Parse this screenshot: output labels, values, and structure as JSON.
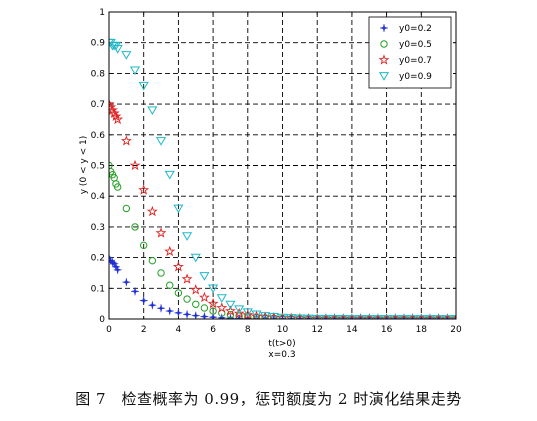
{
  "caption": "图 7　检查概率为 0.99，惩罚额度为 2 时演化结果走势",
  "chart_data": {
    "type": "scatter",
    "title": "",
    "xlabel": "t(t>0)",
    "xlabel2": "x=0.3",
    "ylabel": "y (0 < y < 1)",
    "xlim": [
      0,
      20
    ],
    "ylim": [
      0,
      1
    ],
    "xticks": [
      "0",
      "2",
      "4",
      "6",
      "8",
      "10",
      "12",
      "14",
      "16",
      "18",
      "20"
    ],
    "yticks": [
      "0",
      "0.1",
      "0.2",
      "0.3",
      "0.4",
      "0.5",
      "0.6",
      "0.7",
      "0.8",
      "0.9",
      "1"
    ],
    "grid": true,
    "legend_position": "top-right",
    "x": [
      0,
      0.1,
      0.2,
      0.3,
      0.4,
      0.5,
      1,
      1.5,
      2,
      2.5,
      3,
      3.5,
      4,
      4.5,
      5,
      5.5,
      6,
      6.5,
      7,
      7.5,
      8,
      8.5,
      9,
      9.5,
      10,
      10.5,
      11,
      11.5,
      12,
      12.5,
      13,
      13.5,
      14,
      14.5,
      15,
      15.5,
      16,
      16.5,
      17,
      17.5,
      18,
      18.5,
      19,
      19.5,
      20
    ],
    "series": [
      {
        "name": "y0=0.2",
        "marker": "star4",
        "color": "#1f2fd6",
        "values": [
          0.2,
          0.19,
          0.185,
          0.18,
          0.17,
          0.16,
          0.12,
          0.09,
          0.06,
          0.045,
          0.035,
          0.026,
          0.02,
          0.015,
          0.011,
          0.008,
          0.006,
          0.004,
          0.003,
          0.002,
          0.0015,
          0.001,
          0.0008,
          0.0006,
          0.0004,
          0.0003,
          0.0002,
          0.0002,
          0.0001,
          0.0001,
          0,
          0,
          0,
          0,
          0,
          0,
          0,
          0,
          0,
          0,
          0,
          0,
          0,
          0,
          0
        ]
      },
      {
        "name": "y0=0.5",
        "marker": "circle",
        "color": "#22a022",
        "values": [
          0.5,
          0.48,
          0.47,
          0.46,
          0.44,
          0.43,
          0.36,
          0.3,
          0.24,
          0.19,
          0.15,
          0.11,
          0.085,
          0.065,
          0.048,
          0.036,
          0.026,
          0.019,
          0.014,
          0.01,
          0.007,
          0.005,
          0.0036,
          0.0026,
          0.0018,
          0.0013,
          0.001,
          0.0007,
          0.0005,
          0.0003,
          0.0002,
          0.0002,
          0.0001,
          0.0001,
          0,
          0,
          0,
          0,
          0,
          0,
          0,
          0,
          0,
          0,
          0
        ]
      },
      {
        "name": "y0=0.7",
        "marker": "pentagram",
        "color": "#e02020",
        "values": [
          0.7,
          0.69,
          0.68,
          0.67,
          0.66,
          0.65,
          0.58,
          0.5,
          0.42,
          0.35,
          0.28,
          0.22,
          0.17,
          0.13,
          0.095,
          0.07,
          0.05,
          0.036,
          0.026,
          0.018,
          0.013,
          0.009,
          0.0065,
          0.0045,
          0.0032,
          0.0022,
          0.0015,
          0.001,
          0.0007,
          0.0005,
          0.0003,
          0.0002,
          0.0002,
          0.0001,
          0.0001,
          0,
          0,
          0,
          0,
          0,
          0,
          0,
          0,
          0,
          0
        ]
      },
      {
        "name": "y0=0.9",
        "marker": "triangle-down",
        "color": "#1fb8c8",
        "values": [
          0.9,
          0.9,
          0.89,
          0.89,
          0.89,
          0.88,
          0.86,
          0.81,
          0.76,
          0.68,
          0.58,
          0.47,
          0.36,
          0.27,
          0.2,
          0.14,
          0.1,
          0.068,
          0.047,
          0.032,
          0.022,
          0.015,
          0.01,
          0.007,
          0.0047,
          0.0032,
          0.0022,
          0.0015,
          0.001,
          0.0007,
          0.0005,
          0.0003,
          0.0002,
          0.0002,
          0.0001,
          0.0001,
          0,
          0,
          0,
          0,
          0,
          0,
          0,
          0,
          0
        ]
      }
    ]
  }
}
